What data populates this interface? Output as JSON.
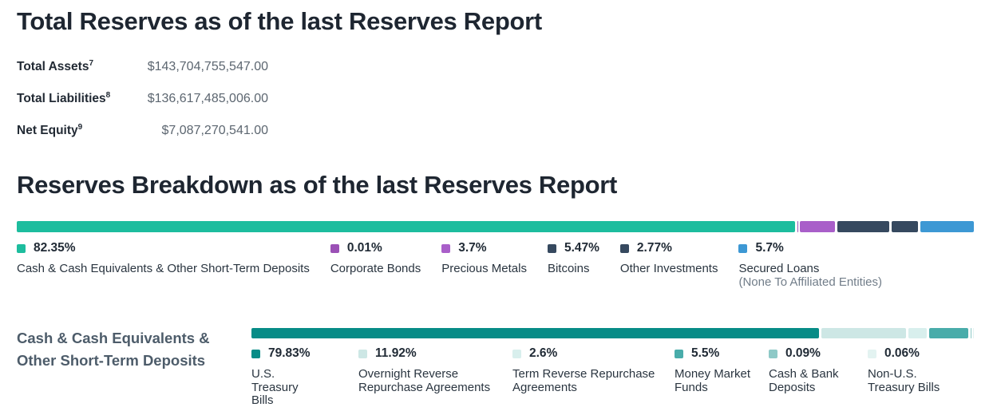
{
  "header": {
    "title": "Total Reserves as of the last Reserves Report"
  },
  "totals": {
    "rows": [
      {
        "label": "Total Assets",
        "footnote": "7",
        "value": "$143,704,755,547.00"
      },
      {
        "label": "Total Liabilities",
        "footnote": "8",
        "value": "$136,617,485,006.00"
      },
      {
        "label": "Net Equity",
        "footnote": "9",
        "value": "$7,087,270,541.00"
      }
    ]
  },
  "breakdown": {
    "title": "Reserves Breakdown as of the last Reserves Report",
    "subsection_label": "Cash & Cash Equivalents &\nOther Short-Term Deposits"
  },
  "chart_data": [
    {
      "type": "bar",
      "variant": "stacked-horizontal-100pct",
      "title": "Reserves Breakdown as of the last Reserves Report",
      "legend_position": "below",
      "segments": [
        {
          "label": "Cash & Cash Equivalents & Other Short-Term Deposits",
          "pct_label": "82.35%",
          "value": 82.35,
          "color": "#1dbd9e"
        },
        {
          "label": "Corporate Bonds",
          "pct_label": "0.01%",
          "value": 0.01,
          "color": "#9b51b6"
        },
        {
          "label": "Precious Metals",
          "pct_label": "3.7%",
          "value": 3.7,
          "color": "#a95fc9"
        },
        {
          "label": "Bitcoins",
          "pct_label": "5.47%",
          "value": 5.47,
          "color": "#36495f"
        },
        {
          "label": "Other Investments",
          "pct_label": "2.77%",
          "value": 2.77,
          "color": "#36495f"
        },
        {
          "label": "Secured Loans",
          "sublabel": "(None To Affiliated Entities)",
          "pct_label": "5.7%",
          "value": 5.7,
          "color": "#3d98d4"
        }
      ]
    },
    {
      "type": "bar",
      "variant": "stacked-horizontal-100pct",
      "title": "Cash & Cash Equivalents & Other Short-Term Deposits",
      "legend_position": "below",
      "segments": [
        {
          "label": "U.S. Treasury Bills",
          "pct_label": "79.83%",
          "value": 79.83,
          "color": "#078c87"
        },
        {
          "label": "Overnight Reverse Repurchase Agreements",
          "pct_label": "11.92%",
          "value": 11.92,
          "color": "#cde7e5"
        },
        {
          "label": "Term Reverse Repurchase Agreements",
          "pct_label": "2.6%",
          "value": 2.6,
          "color": "#d8efed"
        },
        {
          "label": "Money Market Funds",
          "pct_label": "5.5%",
          "value": 5.5,
          "color": "#49acaa"
        },
        {
          "label": "Cash & Bank Deposits",
          "pct_label": "0.09%",
          "value": 0.09,
          "color": "#8ec9c7"
        },
        {
          "label": "Non-U.S. Treasury Bills",
          "pct_label": "0.06%",
          "value": 0.06,
          "color": "#e3f3f1"
        }
      ]
    }
  ]
}
